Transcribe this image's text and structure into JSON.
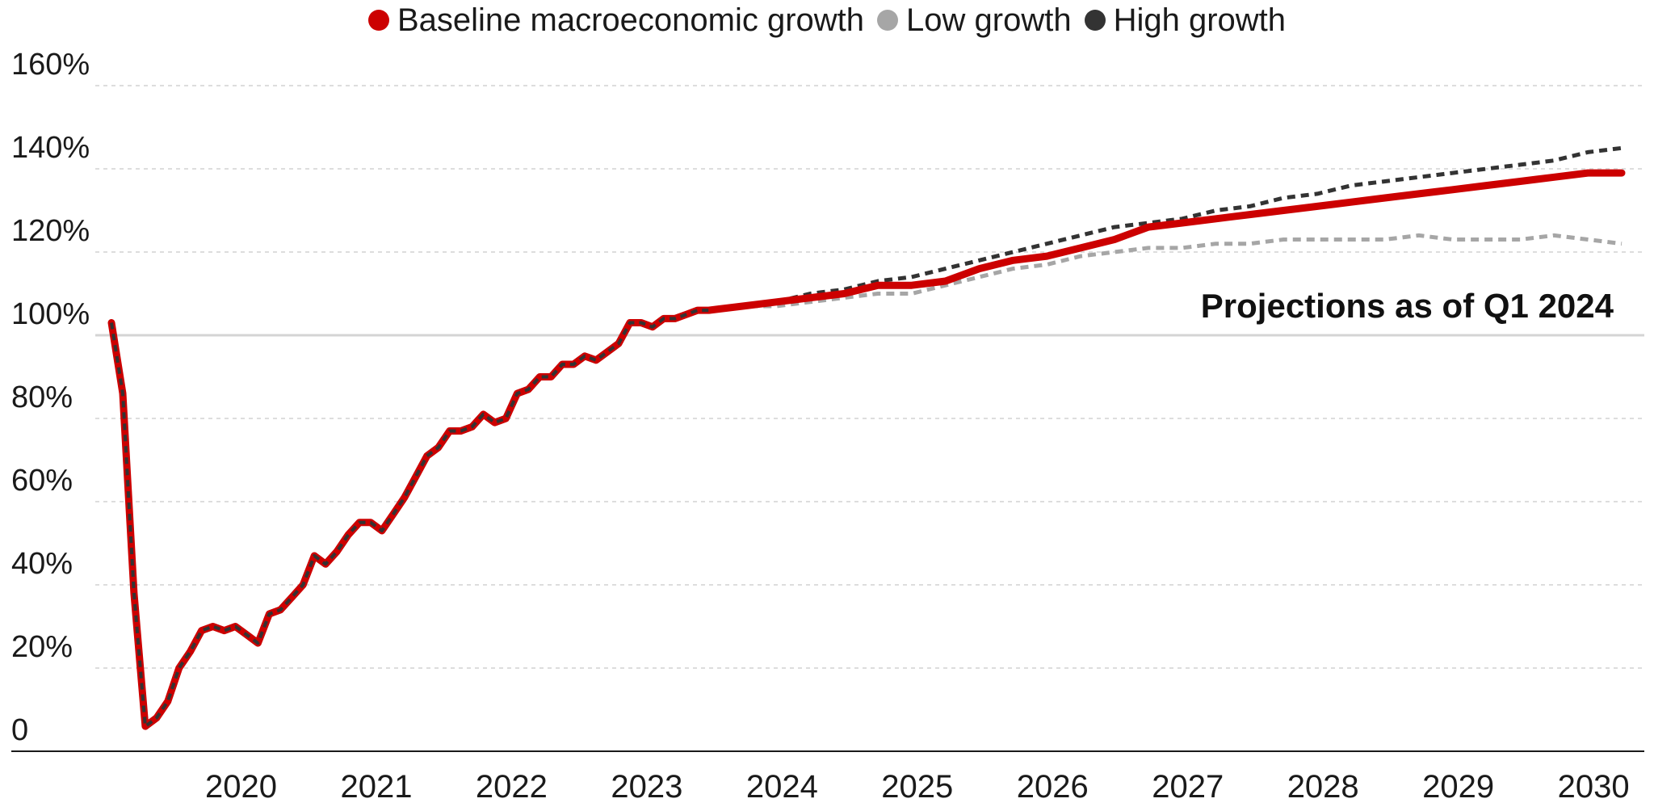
{
  "chart_data": {
    "type": "line",
    "title": "",
    "xlabel": "",
    "ylabel": "",
    "x_ticks": [
      "2020",
      "2021",
      "2022",
      "2023",
      "2024",
      "2025",
      "2026",
      "2027",
      "2028",
      "2029",
      "2030"
    ],
    "y_ticks": [
      "0",
      "20%",
      "40%",
      "60%",
      "80%",
      "100%",
      "120%",
      "140%",
      "160%"
    ],
    "ylim": [
      0,
      160
    ],
    "xlim": [
      "2019-07",
      "2030-09"
    ],
    "reference_line": 100,
    "annotation": "Projections as of Q1 2024",
    "grid": true,
    "legend_position": "top-center",
    "series": [
      {
        "name": "Baseline macroeconomic growth",
        "color": "#cc0000",
        "x": [
          "2019-07",
          "2019-08",
          "2019-09",
          "2019-10",
          "2019-11",
          "2019-12",
          "2020-01",
          "2020-02",
          "2020-03",
          "2020-04",
          "2020-05",
          "2020-06",
          "2020-07",
          "2020-08",
          "2020-09",
          "2020-10",
          "2020-11",
          "2020-12",
          "2021-01",
          "2021-02",
          "2021-03",
          "2021-04",
          "2021-05",
          "2021-06",
          "2021-07",
          "2021-08",
          "2021-09",
          "2021-10",
          "2021-11",
          "2021-12",
          "2022-01",
          "2022-02",
          "2022-03",
          "2022-04",
          "2022-05",
          "2022-06",
          "2022-07",
          "2022-08",
          "2022-09",
          "2022-10",
          "2022-11",
          "2022-12",
          "2023-01",
          "2023-02",
          "2023-03",
          "2023-04",
          "2023-05",
          "2023-06",
          "2023-07",
          "2023-08",
          "2023-09",
          "2023-10",
          "2023-11",
          "2023-12",
          "2024-03",
          "2024-06",
          "2024-09",
          "2024-12",
          "2025-03",
          "2025-06",
          "2025-09",
          "2025-12",
          "2026-03",
          "2026-06",
          "2026-09",
          "2026-12",
          "2027-03",
          "2027-06",
          "2027-09",
          "2027-12",
          "2028-03",
          "2028-06",
          "2028-09",
          "2028-12",
          "2029-03",
          "2029-06",
          "2029-09",
          "2029-12",
          "2030-03",
          "2030-06",
          "2030-09"
        ],
        "values": [
          103,
          86,
          38,
          6,
          8,
          12,
          20,
          24,
          29,
          30,
          29,
          30,
          28,
          26,
          33,
          34,
          37,
          40,
          47,
          45,
          48,
          52,
          55,
          55,
          53,
          57,
          61,
          66,
          71,
          73,
          77,
          77,
          78,
          81,
          79,
          80,
          86,
          87,
          90,
          90,
          93,
          93,
          95,
          94,
          96,
          98,
          103,
          103,
          102,
          104,
          104,
          105,
          106,
          106,
          107,
          108,
          109,
          110,
          112,
          112,
          113,
          116,
          118,
          119,
          121,
          123,
          126,
          127,
          128,
          129,
          130,
          131,
          132,
          133,
          134,
          135,
          136,
          137,
          138,
          139,
          139
        ]
      },
      {
        "name": "Low growth",
        "color": "#a6a6a6",
        "x": [
          "2023-12",
          "2024-03",
          "2024-06",
          "2024-09",
          "2024-12",
          "2025-03",
          "2025-06",
          "2025-09",
          "2025-12",
          "2026-03",
          "2026-06",
          "2026-09",
          "2026-12",
          "2027-03",
          "2027-06",
          "2027-09",
          "2027-12",
          "2028-03",
          "2028-06",
          "2028-09",
          "2028-12",
          "2029-03",
          "2029-06",
          "2029-09",
          "2029-12",
          "2030-03",
          "2030-06",
          "2030-09"
        ],
        "values": [
          106,
          107,
          107,
          108,
          109,
          110,
          110,
          112,
          114,
          116,
          117,
          119,
          120,
          121,
          121,
          122,
          122,
          123,
          123,
          123,
          123,
          124,
          123,
          123,
          123,
          124,
          123,
          122
        ]
      },
      {
        "name": "High growth",
        "color": "#333333",
        "x": [
          "2023-12",
          "2024-03",
          "2024-06",
          "2024-09",
          "2024-12",
          "2025-03",
          "2025-06",
          "2025-09",
          "2025-12",
          "2026-03",
          "2026-06",
          "2026-09",
          "2026-12",
          "2027-03",
          "2027-06",
          "2027-09",
          "2027-12",
          "2028-03",
          "2028-06",
          "2028-09",
          "2028-12",
          "2029-03",
          "2029-06",
          "2029-09",
          "2029-12",
          "2030-03",
          "2030-06",
          "2030-09"
        ],
        "values": [
          106,
          107,
          108,
          110,
          111,
          113,
          114,
          116,
          118,
          120,
          122,
          124,
          126,
          127,
          128,
          130,
          131,
          133,
          134,
          136,
          137,
          138,
          139,
          140,
          141,
          142,
          144,
          145
        ]
      }
    ]
  }
}
